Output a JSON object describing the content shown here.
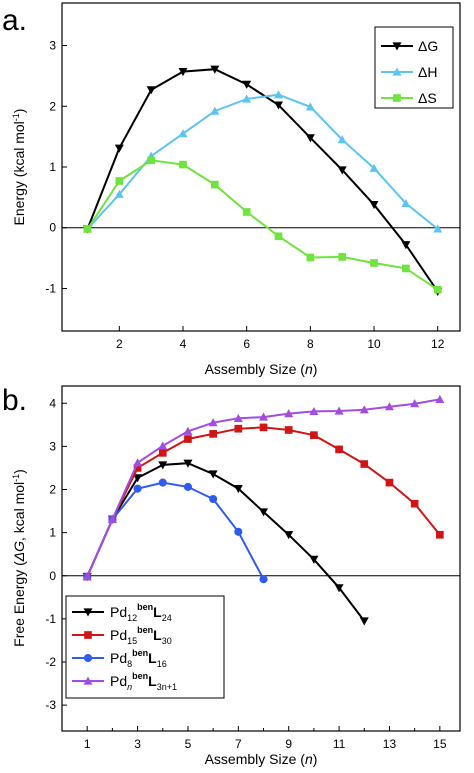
{
  "chart_data": [
    {
      "type": "line",
      "panel_label": "a.",
      "xlabel": "Assembly Size (n)",
      "ylabel": "Energy (kcal mol⁻¹)",
      "xlim": [
        0.2,
        12.7
      ],
      "ylim": [
        -1.7,
        3.7
      ],
      "xticks": [
        2,
        4,
        6,
        8,
        10,
        12
      ],
      "yticks": [
        -1,
        0,
        1,
        2,
        3
      ],
      "zero_line": true,
      "legend_position": "top-right",
      "x": [
        1,
        2,
        3,
        4,
        5,
        6,
        7,
        8,
        9,
        10,
        11,
        12
      ],
      "series": [
        {
          "name": "ΔG",
          "color": "#000000",
          "marker": "triangle-down",
          "values": [
            -0.02,
            1.31,
            2.27,
            2.57,
            2.61,
            2.36,
            2.02,
            1.48,
            0.95,
            0.38,
            -0.28,
            -1.05
          ]
        },
        {
          "name": "ΔH",
          "color": "#5bc4f0",
          "marker": "triangle-up",
          "values": [
            -0.02,
            0.55,
            1.18,
            1.55,
            1.92,
            2.12,
            2.19,
            1.99,
            1.45,
            0.98,
            0.4,
            -0.02
          ]
        },
        {
          "name": "ΔS",
          "color": "#6fe33e",
          "marker": "square",
          "values": [
            -0.02,
            0.77,
            1.11,
            1.04,
            0.71,
            0.26,
            -0.14,
            -0.49,
            -0.48,
            -0.58,
            -0.67,
            -1.02
          ]
        }
      ]
    },
    {
      "type": "line",
      "panel_label": "b.",
      "xlabel": "Assembly Size (n)",
      "ylabel": "Free Energy (ΔG, kcal mol⁻¹)",
      "xlim": [
        0,
        15.8
      ],
      "ylim": [
        -3.6,
        4.4
      ],
      "xticks": [
        1,
        3,
        5,
        7,
        9,
        11,
        13,
        15
      ],
      "xticks_minor": [
        2,
        4,
        6,
        8,
        10,
        12,
        14
      ],
      "yticks": [
        -3,
        -2,
        -1,
        0,
        1,
        2,
        3,
        4
      ],
      "zero_line": true,
      "legend_position": "bottom-left",
      "series": [
        {
          "name": "Pd12benL24",
          "color": "#000000",
          "marker": "triangle-down",
          "legend": {
            "base": "Pd",
            "sub1": "12",
            "sup": "ben",
            "label": "L",
            "sub2": "24"
          },
          "x": [
            1,
            2,
            3,
            4,
            5,
            6,
            7,
            8,
            9,
            10,
            11,
            12
          ],
          "values": [
            -0.02,
            1.31,
            2.27,
            2.57,
            2.61,
            2.36,
            2.02,
            1.48,
            0.95,
            0.38,
            -0.28,
            -1.05
          ]
        },
        {
          "name": "Pd15benL30",
          "color": "#d11414",
          "marker": "square",
          "legend": {
            "base": "Pd",
            "sub1": "15",
            "sup": "ben",
            "label": "L",
            "sub2": "30"
          },
          "x": [
            1,
            2,
            3,
            4,
            5,
            6,
            7,
            8,
            9,
            10,
            11,
            12,
            13,
            14,
            15
          ],
          "values": [
            -0.02,
            1.31,
            2.5,
            2.85,
            3.17,
            3.29,
            3.41,
            3.44,
            3.38,
            3.26,
            2.93,
            2.59,
            2.16,
            1.67,
            0.95
          ]
        },
        {
          "name": "Pd8benL16",
          "color": "#2f5bf0",
          "marker": "circle",
          "legend": {
            "base": "Pd",
            "sub1": "8",
            "sup": "ben",
            "label": "L",
            "sub2": "16"
          },
          "x": [
            1,
            2,
            3,
            4,
            5,
            6,
            7,
            8
          ],
          "values": [
            -0.02,
            1.31,
            2.02,
            2.16,
            2.06,
            1.78,
            1.02,
            -0.08
          ]
        },
        {
          "name": "PdnbenL3n+1",
          "color": "#a24de0",
          "marker": "triangle-up",
          "legend": {
            "base": "Pd",
            "sub1": "n",
            "sup": "ben",
            "label": "L",
            "sub2": "3n+1"
          },
          "x": [
            1,
            2,
            3,
            4,
            5,
            6,
            7,
            8,
            9,
            10,
            11,
            12,
            13,
            14,
            15
          ],
          "values": [
            -0.02,
            1.31,
            2.62,
            3.01,
            3.35,
            3.55,
            3.65,
            3.68,
            3.76,
            3.81,
            3.82,
            3.85,
            3.92,
            3.99,
            4.09
          ]
        }
      ]
    }
  ]
}
